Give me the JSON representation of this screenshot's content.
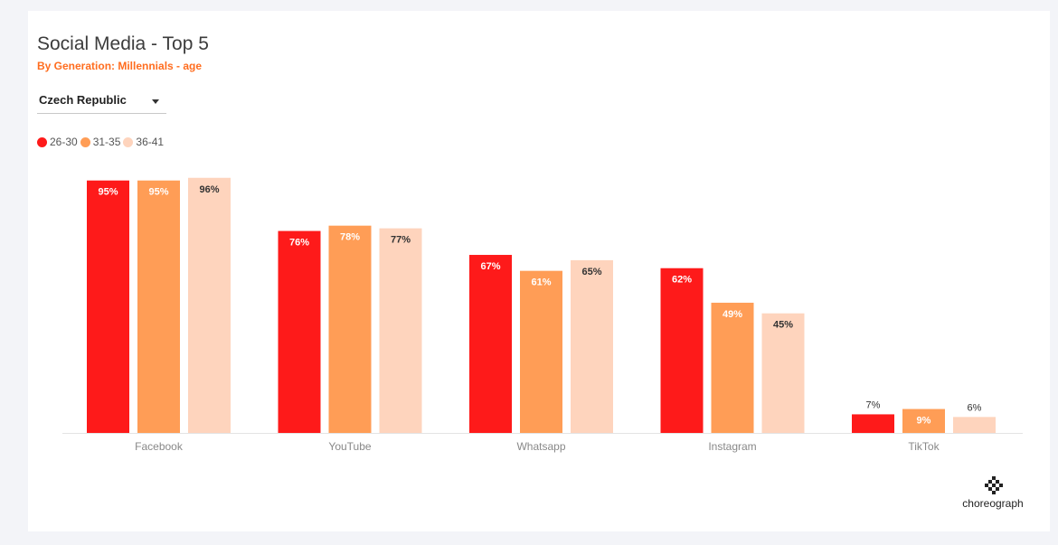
{
  "header": {
    "title": "Social Media - Top 5",
    "subtitle": "By Generation: Millennials - age"
  },
  "filter": {
    "selected": "Czech Republic"
  },
  "legend": [
    {
      "label": "26-30",
      "color": "#fe1a1a"
    },
    {
      "label": "31-35",
      "color": "#ff9d56"
    },
    {
      "label": "36-41",
      "color": "#fed4bd"
    }
  ],
  "chart_data": {
    "type": "bar",
    "categories": [
      "Facebook",
      "YouTube",
      "Whatsapp",
      "Instagram",
      "TikTok"
    ],
    "series": [
      {
        "name": "26-30",
        "color": "#fe1a1a",
        "values": [
          95,
          76,
          67,
          62,
          7
        ],
        "labels": [
          "95%",
          "76%",
          "67%",
          "62%",
          "7%"
        ]
      },
      {
        "name": "31-35",
        "color": "#ff9d56",
        "values": [
          95,
          78,
          61,
          49,
          9
        ],
        "labels": [
          "95%",
          "78%",
          "61%",
          "49%",
          "9%"
        ]
      },
      {
        "name": "36-41",
        "color": "#fed4bd",
        "values": [
          96,
          77,
          65,
          45,
          6
        ],
        "labels": [
          "96%",
          "77%",
          "65%",
          "45%",
          "6%"
        ]
      }
    ],
    "ylim": [
      0,
      100
    ],
    "grid": false,
    "legend_position": "top-left"
  },
  "branding": {
    "logo_text": "choreograph"
  }
}
